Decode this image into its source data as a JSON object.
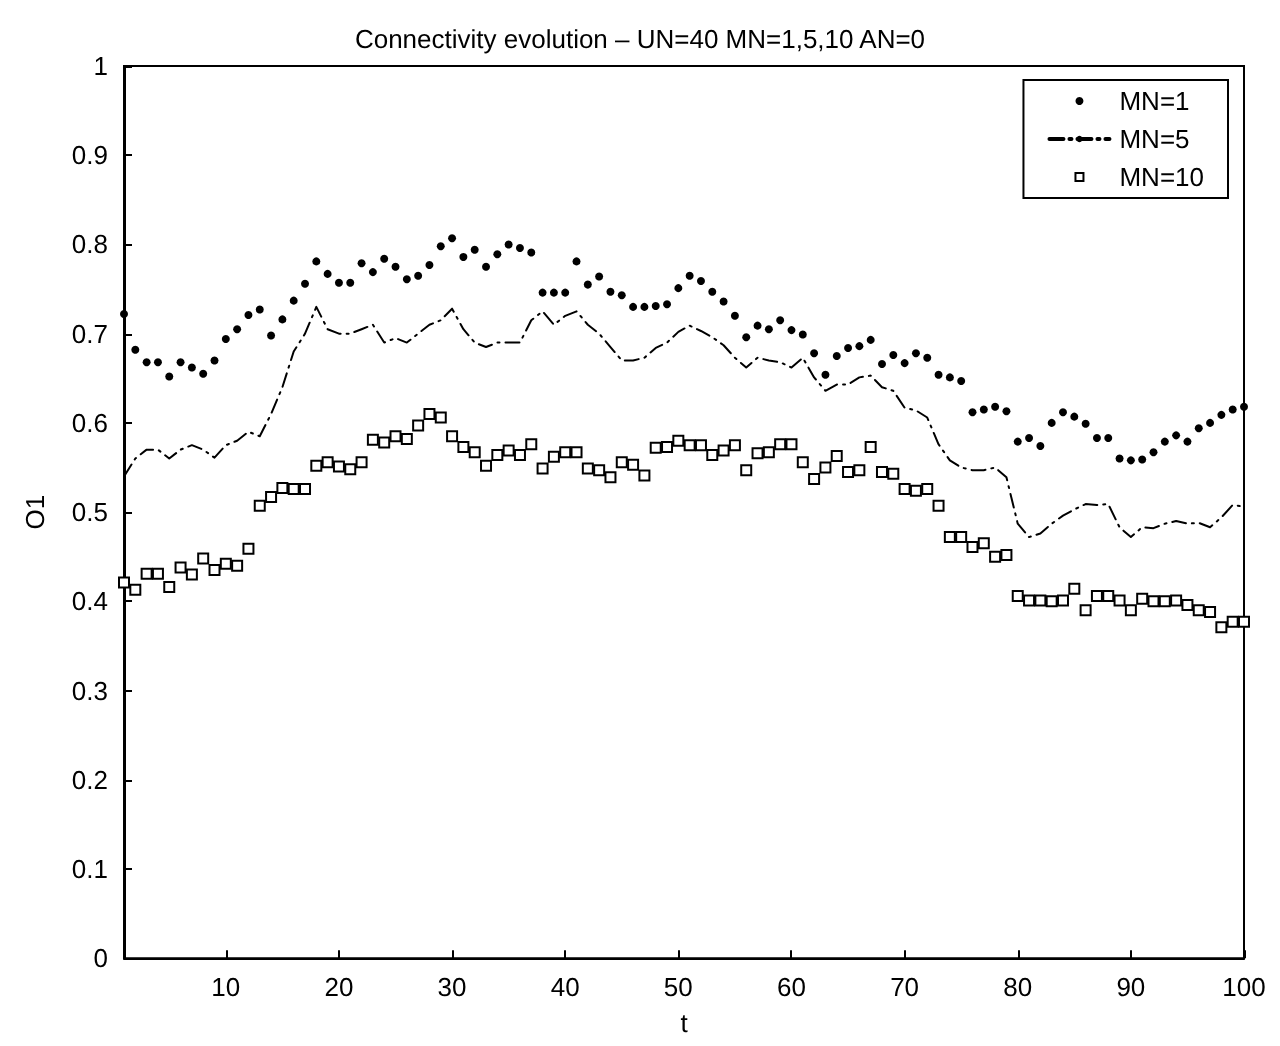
{
  "chart_data": {
    "type": "scatter",
    "title": "Connectivity evolution – UN=40 MN=1,5,10 AN=0",
    "xlabel": "t",
    "ylabel": "O1",
    "x": [
      1,
      2,
      3,
      4,
      5,
      6,
      7,
      8,
      9,
      10,
      11,
      12,
      13,
      14,
      15,
      16,
      17,
      18,
      19,
      20,
      21,
      22,
      23,
      24,
      25,
      26,
      27,
      28,
      29,
      30,
      31,
      32,
      33,
      34,
      35,
      36,
      37,
      38,
      39,
      40,
      41,
      42,
      43,
      44,
      45,
      46,
      47,
      48,
      49,
      50,
      51,
      52,
      53,
      54,
      55,
      56,
      57,
      58,
      59,
      60,
      61,
      62,
      63,
      64,
      65,
      66,
      67,
      68,
      69,
      70,
      71,
      72,
      73,
      74,
      75,
      76,
      77,
      78,
      79,
      80,
      81,
      82,
      83,
      84,
      85,
      86,
      87,
      88,
      89,
      90,
      91,
      92,
      93,
      94,
      95,
      96,
      97,
      98,
      99,
      100
    ],
    "series": [
      {
        "name": "MN=1",
        "marker": "circle",
        "color": "#000000",
        "values": [
          0.722,
          0.682,
          0.668,
          0.668,
          0.652,
          0.668,
          0.662,
          0.655,
          0.67,
          0.694,
          0.705,
          0.721,
          0.727,
          0.698,
          0.716,
          0.737,
          0.756,
          0.781,
          0.767,
          0.757,
          0.757,
          0.779,
          0.769,
          0.784,
          0.775,
          0.761,
          0.765,
          0.777,
          0.798,
          0.807,
          0.786,
          0.794,
          0.775,
          0.789,
          0.8,
          0.796,
          0.791,
          0.746,
          0.746,
          0.746,
          0.781,
          0.755,
          0.764,
          0.747,
          0.743,
          0.73,
          0.73,
          0.731,
          0.733,
          0.751,
          0.765,
          0.759,
          0.747,
          0.736,
          0.72,
          0.696,
          0.709,
          0.705,
          0.715,
          0.704,
          0.699,
          0.678,
          0.654,
          0.675,
          0.684,
          0.686,
          0.693,
          0.666,
          0.676,
          0.667,
          0.678,
          0.673,
          0.654,
          0.651,
          0.647,
          0.612,
          0.615,
          0.618,
          0.613,
          0.579,
          0.583,
          0.574,
          0.6,
          0.612,
          0.607,
          0.599,
          0.583,
          0.583,
          0.56,
          0.558,
          0.559,
          0.567,
          0.579,
          0.586,
          0.579,
          0.594,
          0.6,
          0.609,
          0.615,
          0.618
        ]
      },
      {
        "name": "MN=5",
        "type": "line",
        "marker": "none",
        "line_style": "dashed",
        "color": "#000000",
        "values": [
          0.54,
          0.56,
          0.57,
          0.57,
          0.56,
          0.57,
          0.575,
          0.57,
          0.561,
          0.575,
          0.58,
          0.59,
          0.585,
          0.61,
          0.64,
          0.68,
          0.7,
          0.73,
          0.705,
          0.7,
          0.7,
          0.705,
          0.71,
          0.69,
          0.695,
          0.69,
          0.7,
          0.71,
          0.715,
          0.728,
          0.705,
          0.69,
          0.685,
          0.69,
          0.69,
          0.69,
          0.715,
          0.725,
          0.71,
          0.72,
          0.725,
          0.71,
          0.7,
          0.685,
          0.67,
          0.67,
          0.673,
          0.684,
          0.69,
          0.702,
          0.709,
          0.703,
          0.696,
          0.687,
          0.673,
          0.662,
          0.673,
          0.67,
          0.668,
          0.662,
          0.673,
          0.651,
          0.636,
          0.643,
          0.643,
          0.651,
          0.653,
          0.64,
          0.636,
          0.617,
          0.614,
          0.606,
          0.576,
          0.558,
          0.55,
          0.547,
          0.547,
          0.55,
          0.539,
          0.487,
          0.472,
          0.476,
          0.487,
          0.496,
          0.503,
          0.509,
          0.508,
          0.509,
          0.483,
          0.472,
          0.483,
          0.482,
          0.487,
          0.49,
          0.487,
          0.488,
          0.483,
          0.494,
          0.508,
          0.506
        ]
      },
      {
        "name": "MN=10",
        "marker": "square",
        "color": "#000000",
        "values": [
          0.421,
          0.413,
          0.431,
          0.431,
          0.416,
          0.438,
          0.43,
          0.448,
          0.435,
          0.442,
          0.44,
          0.459,
          0.507,
          0.517,
          0.527,
          0.526,
          0.526,
          0.552,
          0.556,
          0.551,
          0.548,
          0.556,
          0.581,
          0.578,
          0.585,
          0.582,
          0.597,
          0.61,
          0.606,
          0.585,
          0.573,
          0.567,
          0.552,
          0.564,
          0.569,
          0.564,
          0.576,
          0.549,
          0.562,
          0.567,
          0.567,
          0.549,
          0.547,
          0.539,
          0.556,
          0.553,
          0.541,
          0.572,
          0.573,
          0.58,
          0.575,
          0.575,
          0.564,
          0.569,
          0.575,
          0.547,
          0.566,
          0.567,
          0.576,
          0.576,
          0.556,
          0.537,
          0.55,
          0.563,
          0.545,
          0.547,
          0.573,
          0.545,
          0.543,
          0.526,
          0.524,
          0.526,
          0.507,
          0.472,
          0.472,
          0.461,
          0.465,
          0.45,
          0.452,
          0.406,
          0.401,
          0.401,
          0.4,
          0.401,
          0.414,
          0.39,
          0.406,
          0.406,
          0.401,
          0.39,
          0.403,
          0.4,
          0.4,
          0.401,
          0.396,
          0.39,
          0.388,
          0.371,
          0.377,
          0.377
        ]
      }
    ],
    "xlim": [
      1,
      100
    ],
    "xticks": [
      10,
      20,
      30,
      40,
      50,
      60,
      70,
      80,
      90,
      100
    ],
    "ylim": [
      0,
      1
    ],
    "yticks": [
      0,
      0.1,
      0.2,
      0.3,
      0.4,
      0.5,
      0.6,
      0.7,
      0.8,
      0.9,
      1
    ],
    "legend": "top right"
  }
}
